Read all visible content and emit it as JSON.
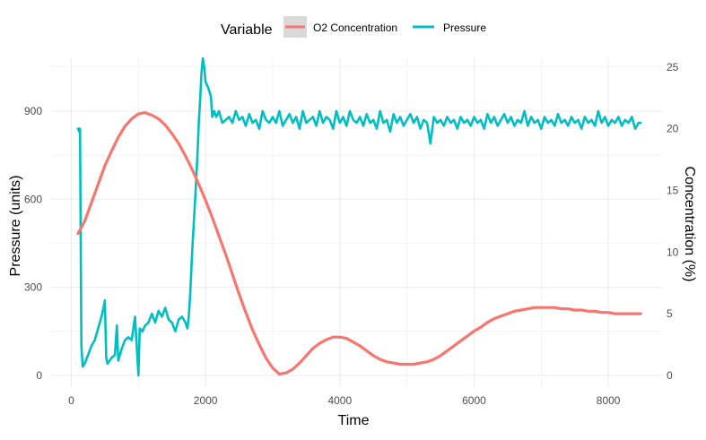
{
  "chart_data": {
    "type": "line",
    "title": "",
    "xlabel": "Time",
    "ylabel_left": "Pressure (units)",
    "ylabel_right": "Concentration (%)",
    "xlim": [
      -300,
      8800
    ],
    "ylim_left": [
      -40,
      1080
    ],
    "ylim_right": [
      -0.952,
      25.714
    ],
    "x_ticks": [
      0,
      2000,
      4000,
      6000,
      8000
    ],
    "y_left_ticks": [
      0,
      300,
      600,
      900
    ],
    "y_right_ticks": [
      0,
      5,
      10,
      15,
      20,
      25
    ],
    "grid": true,
    "legend": {
      "title": "Variable",
      "position": "top",
      "entries": [
        "O2 Concentration",
        "Pressure"
      ]
    },
    "colors": {
      "o2": "#F8766D",
      "pressure": "#00BFC4",
      "grid": "#ebebeb"
    },
    "series": [
      {
        "name": "Pressure",
        "axis": "left",
        "points": [
          [
            100,
            840
          ],
          [
            120,
            830
          ],
          [
            130,
            840
          ],
          [
            150,
            100
          ],
          [
            170,
            30
          ],
          [
            200,
            40
          ],
          [
            250,
            70
          ],
          [
            300,
            100
          ],
          [
            350,
            120
          ],
          [
            400,
            160
          ],
          [
            450,
            200
          ],
          [
            480,
            230
          ],
          [
            500,
            255
          ],
          [
            520,
            60
          ],
          [
            540,
            40
          ],
          [
            600,
            60
          ],
          [
            650,
            70
          ],
          [
            680,
            170
          ],
          [
            700,
            50
          ],
          [
            750,
            90
          ],
          [
            800,
            120
          ],
          [
            850,
            130
          ],
          [
            900,
            120
          ],
          [
            950,
            200
          ],
          [
            980,
            80
          ],
          [
            1000,
            0
          ],
          [
            1020,
            160
          ],
          [
            1060,
            150
          ],
          [
            1100,
            170
          ],
          [
            1150,
            180
          ],
          [
            1200,
            210
          ],
          [
            1250,
            180
          ],
          [
            1300,
            220
          ],
          [
            1350,
            200
          ],
          [
            1400,
            230
          ],
          [
            1450,
            190
          ],
          [
            1500,
            180
          ],
          [
            1550,
            150
          ],
          [
            1600,
            190
          ],
          [
            1650,
            200
          ],
          [
            1700,
            180
          ],
          [
            1730,
            160
          ],
          [
            1750,
            200
          ],
          [
            1770,
            270
          ],
          [
            1800,
            420
          ],
          [
            1850,
            620
          ],
          [
            1880,
            750
          ],
          [
            1900,
            860
          ],
          [
            1920,
            940
          ],
          [
            1940,
            1030
          ],
          [
            1960,
            1080
          ],
          [
            1980,
            1050
          ],
          [
            2000,
            1000
          ],
          [
            2040,
            980
          ],
          [
            2080,
            950
          ],
          [
            2100,
            880
          ],
          [
            2130,
            900
          ],
          [
            2160,
            880
          ],
          [
            2200,
            900
          ],
          [
            2250,
            860
          ],
          [
            2300,
            870
          ],
          [
            2350,
            880
          ],
          [
            2400,
            860
          ],
          [
            2450,
            900
          ],
          [
            2500,
            870
          ],
          [
            2550,
            880
          ],
          [
            2600,
            850
          ],
          [
            2650,
            890
          ],
          [
            2700,
            860
          ],
          [
            2750,
            870
          ],
          [
            2800,
            840
          ],
          [
            2850,
            900
          ],
          [
            2900,
            870
          ],
          [
            2950,
            860
          ],
          [
            3000,
            880
          ],
          [
            3050,
            860
          ],
          [
            3100,
            900
          ],
          [
            3150,
            850
          ],
          [
            3200,
            870
          ],
          [
            3250,
            890
          ],
          [
            3300,
            860
          ],
          [
            3350,
            880
          ],
          [
            3400,
            840
          ],
          [
            3450,
            900
          ],
          [
            3500,
            860
          ],
          [
            3550,
            870
          ],
          [
            3600,
            880
          ],
          [
            3650,
            850
          ],
          [
            3700,
            900
          ],
          [
            3750,
            860
          ],
          [
            3800,
            880
          ],
          [
            3850,
            870
          ],
          [
            3900,
            840
          ],
          [
            3950,
            900
          ],
          [
            4000,
            860
          ],
          [
            4050,
            880
          ],
          [
            4100,
            850
          ],
          [
            4150,
            900
          ],
          [
            4200,
            870
          ],
          [
            4250,
            860
          ],
          [
            4300,
            880
          ],
          [
            4350,
            850
          ],
          [
            4400,
            890
          ],
          [
            4450,
            860
          ],
          [
            4500,
            870
          ],
          [
            4550,
            840
          ],
          [
            4600,
            900
          ],
          [
            4650,
            860
          ],
          [
            4700,
            870
          ],
          [
            4750,
            830
          ],
          [
            4800,
            890
          ],
          [
            4850,
            860
          ],
          [
            4900,
            880
          ],
          [
            4950,
            850
          ],
          [
            5000,
            870
          ],
          [
            5050,
            890
          ],
          [
            5100,
            860
          ],
          [
            5150,
            880
          ],
          [
            5200,
            840
          ],
          [
            5250,
            870
          ],
          [
            5300,
            860
          ],
          [
            5350,
            790
          ],
          [
            5400,
            880
          ],
          [
            5450,
            860
          ],
          [
            5500,
            870
          ],
          [
            5550,
            850
          ],
          [
            5600,
            880
          ],
          [
            5650,
            860
          ],
          [
            5700,
            870
          ],
          [
            5750,
            840
          ],
          [
            5800,
            880
          ],
          [
            5850,
            860
          ],
          [
            5900,
            870
          ],
          [
            5950,
            850
          ],
          [
            6000,
            880
          ],
          [
            6050,
            860
          ],
          [
            6100,
            870
          ],
          [
            6150,
            840
          ],
          [
            6200,
            890
          ],
          [
            6250,
            860
          ],
          [
            6300,
            880
          ],
          [
            6350,
            850
          ],
          [
            6400,
            870
          ],
          [
            6450,
            890
          ],
          [
            6500,
            860
          ],
          [
            6550,
            880
          ],
          [
            6600,
            850
          ],
          [
            6650,
            870
          ],
          [
            6700,
            860
          ],
          [
            6750,
            900
          ],
          [
            6800,
            850
          ],
          [
            6850,
            880
          ],
          [
            6900,
            860
          ],
          [
            6950,
            870
          ],
          [
            7000,
            840
          ],
          [
            7050,
            880
          ],
          [
            7100,
            860
          ],
          [
            7150,
            870
          ],
          [
            7200,
            850
          ],
          [
            7250,
            890
          ],
          [
            7300,
            860
          ],
          [
            7350,
            870
          ],
          [
            7400,
            850
          ],
          [
            7450,
            880
          ],
          [
            7500,
            860
          ],
          [
            7550,
            870
          ],
          [
            7600,
            840
          ],
          [
            7650,
            880
          ],
          [
            7700,
            860
          ],
          [
            7750,
            870
          ],
          [
            7800,
            850
          ],
          [
            7850,
            900
          ],
          [
            7900,
            860
          ],
          [
            7950,
            880
          ],
          [
            8000,
            850
          ],
          [
            8050,
            870
          ],
          [
            8100,
            860
          ],
          [
            8150,
            880
          ],
          [
            8200,
            850
          ],
          [
            8250,
            870
          ],
          [
            8300,
            860
          ],
          [
            8350,
            880
          ],
          [
            8400,
            840
          ],
          [
            8450,
            860
          ],
          [
            8480,
            860
          ]
        ]
      },
      {
        "name": "O2 Concentration",
        "axis": "right",
        "points": [
          [
            100,
            11.5
          ],
          [
            200,
            12.5
          ],
          [
            300,
            14.0
          ],
          [
            400,
            15.5
          ],
          [
            500,
            17.0
          ],
          [
            600,
            18.2
          ],
          [
            700,
            19.3
          ],
          [
            800,
            20.2
          ],
          [
            900,
            20.8
          ],
          [
            1000,
            21.2
          ],
          [
            1100,
            21.3
          ],
          [
            1200,
            21.1
          ],
          [
            1300,
            20.8
          ],
          [
            1400,
            20.3
          ],
          [
            1500,
            19.6
          ],
          [
            1600,
            18.8
          ],
          [
            1700,
            17.8
          ],
          [
            1800,
            16.7
          ],
          [
            1900,
            15.5
          ],
          [
            2000,
            14.2
          ],
          [
            2100,
            12.8
          ],
          [
            2200,
            11.3
          ],
          [
            2300,
            9.8
          ],
          [
            2400,
            8.2
          ],
          [
            2500,
            6.6
          ],
          [
            2600,
            5.1
          ],
          [
            2700,
            3.7
          ],
          [
            2800,
            2.5
          ],
          [
            2900,
            1.4
          ],
          [
            3000,
            0.6
          ],
          [
            3100,
            0.1
          ],
          [
            3200,
            0.2
          ],
          [
            3300,
            0.5
          ],
          [
            3400,
            1.0
          ],
          [
            3500,
            1.6
          ],
          [
            3600,
            2.2
          ],
          [
            3700,
            2.6
          ],
          [
            3800,
            2.9
          ],
          [
            3900,
            3.1
          ],
          [
            4000,
            3.1
          ],
          [
            4100,
            3.0
          ],
          [
            4200,
            2.7
          ],
          [
            4300,
            2.4
          ],
          [
            4400,
            2.0
          ],
          [
            4500,
            1.6
          ],
          [
            4600,
            1.3
          ],
          [
            4700,
            1.1
          ],
          [
            4800,
            1.0
          ],
          [
            4900,
            0.9
          ],
          [
            5000,
            0.9
          ],
          [
            5100,
            0.9
          ],
          [
            5200,
            1.0
          ],
          [
            5300,
            1.1
          ],
          [
            5400,
            1.3
          ],
          [
            5500,
            1.6
          ],
          [
            5600,
            2.0
          ],
          [
            5700,
            2.4
          ],
          [
            5800,
            2.8
          ],
          [
            5900,
            3.2
          ],
          [
            6000,
            3.6
          ],
          [
            6100,
            3.9
          ],
          [
            6200,
            4.3
          ],
          [
            6300,
            4.6
          ],
          [
            6400,
            4.8
          ],
          [
            6500,
            5.0
          ],
          [
            6600,
            5.2
          ],
          [
            6700,
            5.3
          ],
          [
            6800,
            5.4
          ],
          [
            6900,
            5.5
          ],
          [
            7000,
            5.5
          ],
          [
            7100,
            5.5
          ],
          [
            7200,
            5.5
          ],
          [
            7300,
            5.4
          ],
          [
            7400,
            5.4
          ],
          [
            7500,
            5.3
          ],
          [
            7600,
            5.3
          ],
          [
            7700,
            5.2
          ],
          [
            7800,
            5.2
          ],
          [
            7900,
            5.1
          ],
          [
            8000,
            5.1
          ],
          [
            8100,
            5.0
          ],
          [
            8200,
            5.0
          ],
          [
            8300,
            5.0
          ],
          [
            8400,
            5.0
          ],
          [
            8480,
            5.0
          ]
        ]
      }
    ]
  }
}
